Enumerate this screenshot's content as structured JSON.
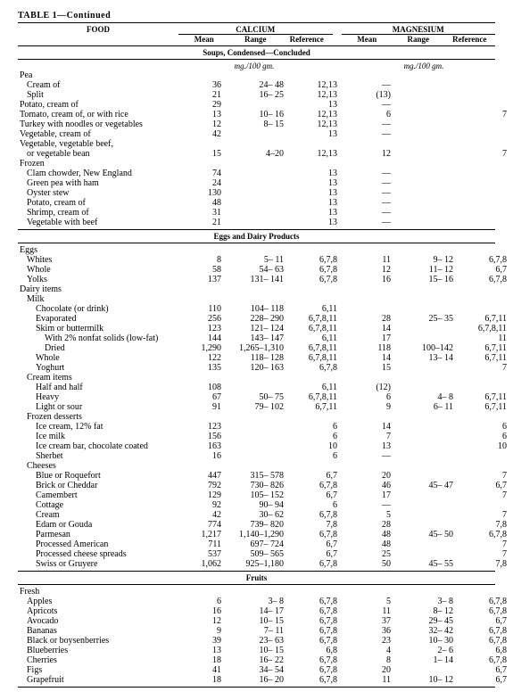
{
  "title": "TABLE 1—Continued",
  "food_label": "FOOD",
  "calcium_label": "CALCIUM",
  "magnesium_label": "MAGNESIUM",
  "mean_label": "Mean",
  "range_label": "Range",
  "ref_label": "Reference",
  "unit": "mg./100 gm.",
  "sections": [
    {
      "header": "Soups, Condensed—Concluded",
      "show_unit": true,
      "rows": [
        {
          "name": "Pea",
          "ind": "cat"
        },
        {
          "name": "Cream of",
          "ind": "ind1",
          "ca_mean": "36",
          "ca_range": "24–  48",
          "ca_ref": "12,13",
          "mg_mean": "—"
        },
        {
          "name": "Split",
          "ind": "ind1",
          "ca_mean": "21",
          "ca_range": "16–  25",
          "ca_ref": "12,13",
          "mg_mean": "(13)"
        },
        {
          "name": "Potato, cream of",
          "ind": "cat",
          "ca_mean": "29",
          "ca_ref": "13",
          "mg_mean": "—"
        },
        {
          "name": "Tomato, cream of, or with rice",
          "ind": "cat",
          "ca_mean": "13",
          "ca_range": "10–  16",
          "ca_ref": "12,13",
          "mg_mean": "6",
          "mg_ref": "7"
        },
        {
          "name": "Turkey with noodles or vegetables",
          "ind": "cat",
          "ca_mean": "12",
          "ca_range": "8–  15",
          "ca_ref": "12,13",
          "mg_mean": "—"
        },
        {
          "name": "Vegetable, cream of",
          "ind": "cat",
          "ca_mean": "42",
          "ca_ref": "13",
          "mg_mean": "—"
        },
        {
          "name": "Vegetable, vegetable beef,",
          "ind": "cat"
        },
        {
          "name": "or vegetable bean",
          "ind": "ind1",
          "ca_mean": "15",
          "ca_range": "4–20",
          "ca_ref": "12,13",
          "mg_mean": "12",
          "mg_ref": "7"
        },
        {
          "name": "Frozen",
          "ind": "cat"
        },
        {
          "name": "Clam chowder, New England",
          "ind": "ind1",
          "ca_mean": "74",
          "ca_ref": "13",
          "mg_mean": "—"
        },
        {
          "name": "Green pea with ham",
          "ind": "ind1",
          "ca_mean": "24",
          "ca_ref": "13",
          "mg_mean": "—"
        },
        {
          "name": "Oyster stew",
          "ind": "ind1",
          "ca_mean": "130",
          "ca_ref": "13",
          "mg_mean": "—"
        },
        {
          "name": "Potato, cream of",
          "ind": "ind1",
          "ca_mean": "48",
          "ca_ref": "13",
          "mg_mean": "—"
        },
        {
          "name": "Shrimp, cream of",
          "ind": "ind1",
          "ca_mean": "31",
          "ca_ref": "13",
          "mg_mean": "—"
        },
        {
          "name": "Vegetable with beef",
          "ind": "ind1",
          "ca_mean": "21",
          "ca_ref": "13",
          "mg_mean": "—"
        }
      ]
    },
    {
      "header": "Eggs and Dairy Products",
      "rows": [
        {
          "name": "Eggs",
          "ind": "cat"
        },
        {
          "name": "Whites",
          "ind": "ind1",
          "ca_mean": "8",
          "ca_range": "5–  11",
          "ca_ref": "6,7,8",
          "mg_mean": "11",
          "mg_range": "9– 12",
          "mg_ref": "6,7,8"
        },
        {
          "name": "Whole",
          "ind": "ind1",
          "ca_mean": "58",
          "ca_range": "54–  63",
          "ca_ref": "6,7,8",
          "mg_mean": "12",
          "mg_range": "11– 12",
          "mg_ref": "6,7"
        },
        {
          "name": "Yolks",
          "ind": "ind1",
          "ca_mean": "137",
          "ca_range": "131– 141",
          "ca_ref": "6,7,8",
          "mg_mean": "16",
          "mg_range": "15– 16",
          "mg_ref": "6,7,8"
        },
        {
          "name": "Dairy items",
          "ind": "cat"
        },
        {
          "name": "Milk",
          "ind": "ind1"
        },
        {
          "name": "Chocolate (or drink)",
          "ind": "ind2",
          "ca_mean": "110",
          "ca_range": "104– 118",
          "ca_ref": "6,11"
        },
        {
          "name": "Evaporated",
          "ind": "ind2",
          "ca_mean": "256",
          "ca_range": "228– 290",
          "ca_ref": "6,7,8,11",
          "mg_mean": "28",
          "mg_range": "25– 35",
          "mg_ref": "6,7,11"
        },
        {
          "name": "Skim or buttermilk",
          "ind": "ind2",
          "ca_mean": "123",
          "ca_range": "121– 124",
          "ca_ref": "6,7,8,11",
          "mg_mean": "14",
          "mg_ref": "6,7,8,11"
        },
        {
          "name": "With 2% nonfat solids (low-fat)",
          "ind": "ind3",
          "ca_mean": "144",
          "ca_range": "143– 147",
          "ca_ref": "6,11",
          "mg_mean": "17",
          "mg_ref": "11"
        },
        {
          "name": "Dried",
          "ind": "ind3",
          "ca_mean": "1,290",
          "ca_range": "1,265–1,310",
          "ca_ref": "6,7,8,11",
          "mg_mean": "118",
          "mg_range": "100–142",
          "mg_ref": "6,7,11"
        },
        {
          "name": "Whole",
          "ind": "ind2",
          "ca_mean": "122",
          "ca_range": "118– 128",
          "ca_ref": "6,7,8,11",
          "mg_mean": "14",
          "mg_range": "13– 14",
          "mg_ref": "6,7,11"
        },
        {
          "name": "Yoghurt",
          "ind": "ind2",
          "ca_mean": "135",
          "ca_range": "120– 163",
          "ca_ref": "6,7,8",
          "mg_mean": "15",
          "mg_ref": "7"
        },
        {
          "name": "Cream items",
          "ind": "ind1"
        },
        {
          "name": "Half and half",
          "ind": "ind2",
          "ca_mean": "108",
          "ca_ref": "6,11",
          "mg_mean": "(12)"
        },
        {
          "name": "Heavy",
          "ind": "ind2",
          "ca_mean": "67",
          "ca_range": "50–  75",
          "ca_ref": "6,7,8,11",
          "mg_mean": "6",
          "mg_range": "4–  8",
          "mg_ref": "6,7,11"
        },
        {
          "name": "Light or sour",
          "ind": "ind2",
          "ca_mean": "91",
          "ca_range": "79– 102",
          "ca_ref": "6,7,11",
          "mg_mean": "9",
          "mg_range": "6– 11",
          "mg_ref": "6,7,11"
        },
        {
          "name": "Frozen desserts",
          "ind": "ind1"
        },
        {
          "name": "Ice cream, 12% fat",
          "ind": "ind2",
          "ca_mean": "123",
          "ca_ref": "6",
          "mg_mean": "14",
          "mg_ref": "6"
        },
        {
          "name": "Ice milk",
          "ind": "ind2",
          "ca_mean": "156",
          "ca_ref": "6",
          "mg_mean": "7",
          "mg_ref": "6"
        },
        {
          "name": "Ice cream bar, chocolate coated",
          "ind": "ind2",
          "ca_mean": "163",
          "ca_ref": "10",
          "mg_mean": "13",
          "mg_ref": "10"
        },
        {
          "name": "Sherbet",
          "ind": "ind2",
          "ca_mean": "16",
          "ca_ref": "6",
          "mg_mean": "—"
        },
        {
          "name": "Cheeses",
          "ind": "ind1"
        },
        {
          "name": "Blue or Roquefort",
          "ind": "ind2",
          "ca_mean": "447",
          "ca_range": "315– 578",
          "ca_ref": "6,7",
          "mg_mean": "20",
          "mg_ref": "7"
        },
        {
          "name": "Brick or Cheddar",
          "ind": "ind2",
          "ca_mean": "792",
          "ca_range": "730– 826",
          "ca_ref": "6,7,8",
          "mg_mean": "46",
          "mg_range": "45– 47",
          "mg_ref": "6,7"
        },
        {
          "name": "Camembert",
          "ind": "ind2",
          "ca_mean": "129",
          "ca_range": "105– 152",
          "ca_ref": "6,7",
          "mg_mean": "17",
          "mg_ref": "7"
        },
        {
          "name": "Cottage",
          "ind": "ind2",
          "ca_mean": "92",
          "ca_range": "90–  94",
          "ca_ref": "6",
          "mg_mean": "—"
        },
        {
          "name": "Cream",
          "ind": "ind2",
          "ca_mean": "42",
          "ca_range": "30–  62",
          "ca_ref": "6,7,8",
          "mg_mean": "5",
          "mg_ref": "7"
        },
        {
          "name": "Edam or Gouda",
          "ind": "ind2",
          "ca_mean": "774",
          "ca_range": "739– 820",
          "ca_ref": "7,8",
          "mg_mean": "28",
          "mg_ref": "7,8"
        },
        {
          "name": "Parmesan",
          "ind": "ind2",
          "ca_mean": "1,217",
          "ca_range": "1,140–1,290",
          "ca_ref": "6,7,8",
          "mg_mean": "48",
          "mg_range": "45– 50",
          "mg_ref": "6,7,8"
        },
        {
          "name": "Processed American",
          "ind": "ind2",
          "ca_mean": "711",
          "ca_range": "697– 724",
          "ca_ref": "6,7",
          "mg_mean": "48",
          "mg_ref": "7"
        },
        {
          "name": "Processed cheese spreads",
          "ind": "ind2",
          "ca_mean": "537",
          "ca_range": "509– 565",
          "ca_ref": "6,7",
          "mg_mean": "25",
          "mg_ref": "7"
        },
        {
          "name": "Swiss or Gruyere",
          "ind": "ind2",
          "ca_mean": "1,062",
          "ca_range": "925–1,180",
          "ca_ref": "6,7,8",
          "mg_mean": "50",
          "mg_range": "45– 55",
          "mg_ref": "7,8"
        }
      ]
    },
    {
      "header": "Fruits",
      "rows": [
        {
          "name": "Fresh",
          "ind": "cat"
        },
        {
          "name": "Apples",
          "ind": "ind1",
          "ca_mean": "6",
          "ca_range": "3–   8",
          "ca_ref": "6,7,8",
          "mg_mean": "5",
          "mg_range": "3–  8",
          "mg_ref": "6,7,8"
        },
        {
          "name": "Apricots",
          "ind": "ind1",
          "ca_mean": "16",
          "ca_range": "14–  17",
          "ca_ref": "6,7,8",
          "mg_mean": "11",
          "mg_range": "8– 12",
          "mg_ref": "6,7,8"
        },
        {
          "name": "Avocado",
          "ind": "ind1",
          "ca_mean": "12",
          "ca_range": "10–  15",
          "ca_ref": "6,7,8",
          "mg_mean": "37",
          "mg_range": "29– 45",
          "mg_ref": "6,7"
        },
        {
          "name": "Bananas",
          "ind": "ind1",
          "ca_mean": "9",
          "ca_range": "7–  11",
          "ca_ref": "6,7,8",
          "mg_mean": "36",
          "mg_range": "32– 42",
          "mg_ref": "6,7,8"
        },
        {
          "name": "Black or boysenberries",
          "ind": "ind1",
          "ca_mean": "39",
          "ca_range": "23–  63",
          "ca_ref": "6,7,8",
          "mg_mean": "23",
          "mg_range": "10– 30",
          "mg_ref": "6,7,8"
        },
        {
          "name": "Blueberries",
          "ind": "ind1",
          "ca_mean": "13",
          "ca_range": "10–  15",
          "ca_ref": "6,8",
          "mg_mean": "4",
          "mg_range": "2–  6",
          "mg_ref": "6,8"
        },
        {
          "name": "Cherries",
          "ind": "ind1",
          "ca_mean": "18",
          "ca_range": "16–  22",
          "ca_ref": "6,7,8",
          "mg_mean": "8",
          "mg_range": "1– 14",
          "mg_ref": "6,7,8"
        },
        {
          "name": "Figs",
          "ind": "ind1",
          "ca_mean": "41",
          "ca_range": "34–  54",
          "ca_ref": "6,7,8",
          "mg_mean": "20",
          "mg_ref": "6,7"
        },
        {
          "name": "Grapefruit",
          "ind": "ind1",
          "ca_mean": "18",
          "ca_range": "16–  20",
          "ca_ref": "6,7,8",
          "mg_mean": "11",
          "mg_range": "10– 12",
          "mg_ref": "6,7"
        }
      ]
    }
  ]
}
